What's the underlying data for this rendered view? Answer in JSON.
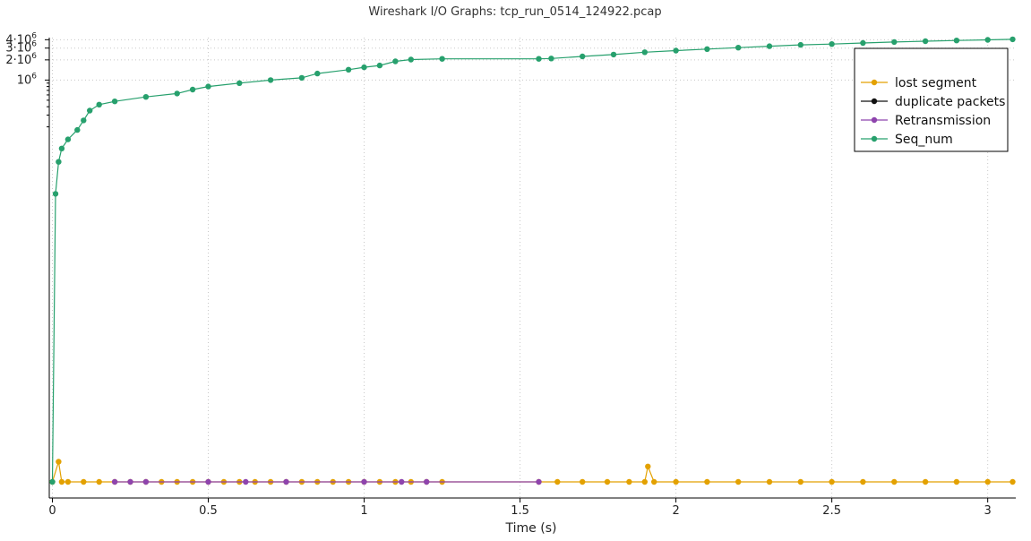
{
  "chart_data": {
    "type": "line",
    "title": "Wireshark I/O Graphs: tcp_run_0514_124922.pcap",
    "xlabel": "Time (s)",
    "ylabel": "",
    "x_scale": "linear",
    "y_scale": "log",
    "xlim": [
      -0.01,
      3.09
    ],
    "grid": true,
    "legend_position": "top-right",
    "x_ticks": [
      {
        "value": 0,
        "label": "0"
      },
      {
        "value": 0.5,
        "label": "0.5"
      },
      {
        "value": 1,
        "label": "1"
      },
      {
        "value": 1.5,
        "label": "1.5"
      },
      {
        "value": 2,
        "label": "2"
      },
      {
        "value": 2.5,
        "label": "2.5"
      },
      {
        "value": 3,
        "label": "3"
      }
    ],
    "y_ticks": [
      {
        "label": "10",
        "exp": "6"
      },
      {
        "label": "2·10",
        "exp": "6"
      },
      {
        "label": "3·10",
        "exp": "6"
      },
      {
        "label": "4·10",
        "exp": "6"
      }
    ],
    "series": [
      {
        "name": "lost segment",
        "color": "#e3a100",
        "points": [
          [
            0,
            1
          ],
          [
            0.02,
            2
          ],
          [
            0.03,
            1
          ],
          [
            0.05,
            1
          ],
          [
            0.1,
            1
          ],
          [
            0.15,
            1
          ],
          [
            0.2,
            1
          ],
          [
            0.25,
            1
          ],
          [
            0.3,
            1
          ],
          [
            0.35,
            1
          ],
          [
            0.4,
            1
          ],
          [
            0.45,
            1
          ],
          [
            0.5,
            1
          ],
          [
            0.55,
            1
          ],
          [
            0.6,
            1
          ],
          [
            0.65,
            1
          ],
          [
            0.7,
            1
          ],
          [
            0.75,
            1
          ],
          [
            0.8,
            1
          ],
          [
            0.85,
            1
          ],
          [
            0.9,
            1
          ],
          [
            0.95,
            1
          ],
          [
            1.0,
            1
          ],
          [
            1.05,
            1
          ],
          [
            1.1,
            1
          ],
          [
            1.15,
            1
          ],
          [
            1.2,
            1
          ],
          [
            1.25,
            1
          ],
          [
            1.56,
            1
          ],
          [
            1.62,
            1
          ],
          [
            1.7,
            1
          ],
          [
            1.78,
            1
          ],
          [
            1.85,
            1
          ],
          [
            1.9,
            1
          ],
          [
            1.91,
            1.7
          ],
          [
            1.93,
            1
          ],
          [
            2.0,
            1
          ],
          [
            2.1,
            1
          ],
          [
            2.2,
            1
          ],
          [
            2.3,
            1
          ],
          [
            2.4,
            1
          ],
          [
            2.5,
            1
          ],
          [
            2.6,
            1
          ],
          [
            2.7,
            1
          ],
          [
            2.8,
            1
          ],
          [
            2.9,
            1
          ],
          [
            3.0,
            1
          ],
          [
            3.08,
            1
          ]
        ]
      },
      {
        "name": "duplicate packets",
        "color": "#111111",
        "points": []
      },
      {
        "name": "Retransmission",
        "color": "#8e44ad",
        "points": [
          [
            0.2,
            1
          ],
          [
            0.25,
            1
          ],
          [
            0.3,
            1
          ],
          [
            0.5,
            1
          ],
          [
            0.62,
            1
          ],
          [
            0.75,
            1
          ],
          [
            1.0,
            1
          ],
          [
            1.12,
            1
          ],
          [
            1.2,
            1
          ],
          [
            1.56,
            1
          ]
        ]
      },
      {
        "name": "Seq_num",
        "color": "#27a06d",
        "points": [
          [
            0,
            1
          ],
          [
            0.01,
            20000
          ],
          [
            0.02,
            60000
          ],
          [
            0.03,
            95000
          ],
          [
            0.05,
            130000
          ],
          [
            0.08,
            180000
          ],
          [
            0.1,
            250000
          ],
          [
            0.12,
            350000
          ],
          [
            0.15,
            430000
          ],
          [
            0.2,
            480000
          ],
          [
            0.3,
            560000
          ],
          [
            0.4,
            630000
          ],
          [
            0.45,
            720000
          ],
          [
            0.5,
            800000
          ],
          [
            0.6,
            900000
          ],
          [
            0.7,
            1000000
          ],
          [
            0.8,
            1080000
          ],
          [
            0.85,
            1250000
          ],
          [
            0.95,
            1430000
          ],
          [
            1.0,
            1550000
          ],
          [
            1.05,
            1650000
          ],
          [
            1.1,
            1900000
          ],
          [
            1.15,
            2020000
          ],
          [
            1.25,
            2070000
          ],
          [
            1.56,
            2070000
          ],
          [
            1.6,
            2100000
          ],
          [
            1.7,
            2250000
          ],
          [
            1.8,
            2400000
          ],
          [
            1.9,
            2600000
          ],
          [
            2.0,
            2750000
          ],
          [
            2.1,
            2900000
          ],
          [
            2.2,
            3050000
          ],
          [
            2.3,
            3200000
          ],
          [
            2.4,
            3350000
          ],
          [
            2.5,
            3450000
          ],
          [
            2.6,
            3580000
          ],
          [
            2.7,
            3700000
          ],
          [
            2.8,
            3800000
          ],
          [
            2.9,
            3900000
          ],
          [
            3.0,
            3980000
          ],
          [
            3.08,
            4060000
          ]
        ]
      }
    ]
  }
}
